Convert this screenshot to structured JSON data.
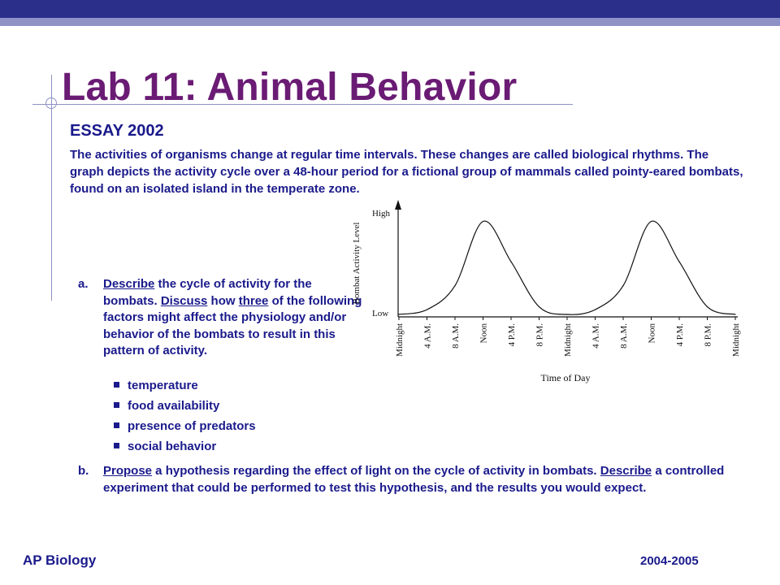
{
  "slide": {
    "title": "Lab 11: Animal Behavior",
    "subtitle": "ESSAY 2002",
    "intro": "The activities of organisms change at regular time intervals. These changes are called biological rhythms. The graph depicts the activity cycle over a 48-hour period for a fictional group of mammals called pointy-eared bombats, found on an isolated island in the temperate zone."
  },
  "question_a": {
    "letter": "a.",
    "verb1": "Describe",
    "text1": " the cycle of activity for the bombats. ",
    "verb2": "Discuss",
    "text2": " how ",
    "word3": "three",
    "text3": " of the following factors might affect the physiology and/or behavior of the bombats to result in this pattern of activity."
  },
  "factors": [
    "temperature",
    "food availability",
    "presence of predators",
    "social behavior"
  ],
  "question_b": {
    "letter": "b.",
    "verb1": "Propose",
    "text1": " a hypothesis regarding the effect of light on the cycle of activity in bombats. ",
    "verb2": "Describe",
    "text2": " a controlled experiment that could be performed to test this hypothesis, and the results you would expect."
  },
  "footer": {
    "left": "AP Biology",
    "right": "2004-2005"
  },
  "chart_data": {
    "type": "line",
    "ylabel": "Bombat Activity Level",
    "xlabel": "Time of Day",
    "y_tick_labels": [
      "High",
      "Low"
    ],
    "x": [
      "Midnight",
      "4 A.M.",
      "8 A.M.",
      "Noon",
      "4 P.M.",
      "8 P.M.",
      "Midnight",
      "4 A.M.",
      "8 A.M.",
      "Noon",
      "4 P.M.",
      "8 P.M.",
      "Midnight"
    ],
    "hours": [
      0,
      4,
      8,
      12,
      16,
      20,
      24,
      28,
      32,
      36,
      40,
      44,
      48
    ],
    "series": [
      {
        "values": [
          0.0,
          0.05,
          0.3,
          0.97,
          0.55,
          0.08,
          0.0,
          0.05,
          0.3,
          0.97,
          0.55,
          0.08,
          0.0
        ]
      }
    ],
    "ylim": [
      0,
      1
    ],
    "grid": false
  }
}
